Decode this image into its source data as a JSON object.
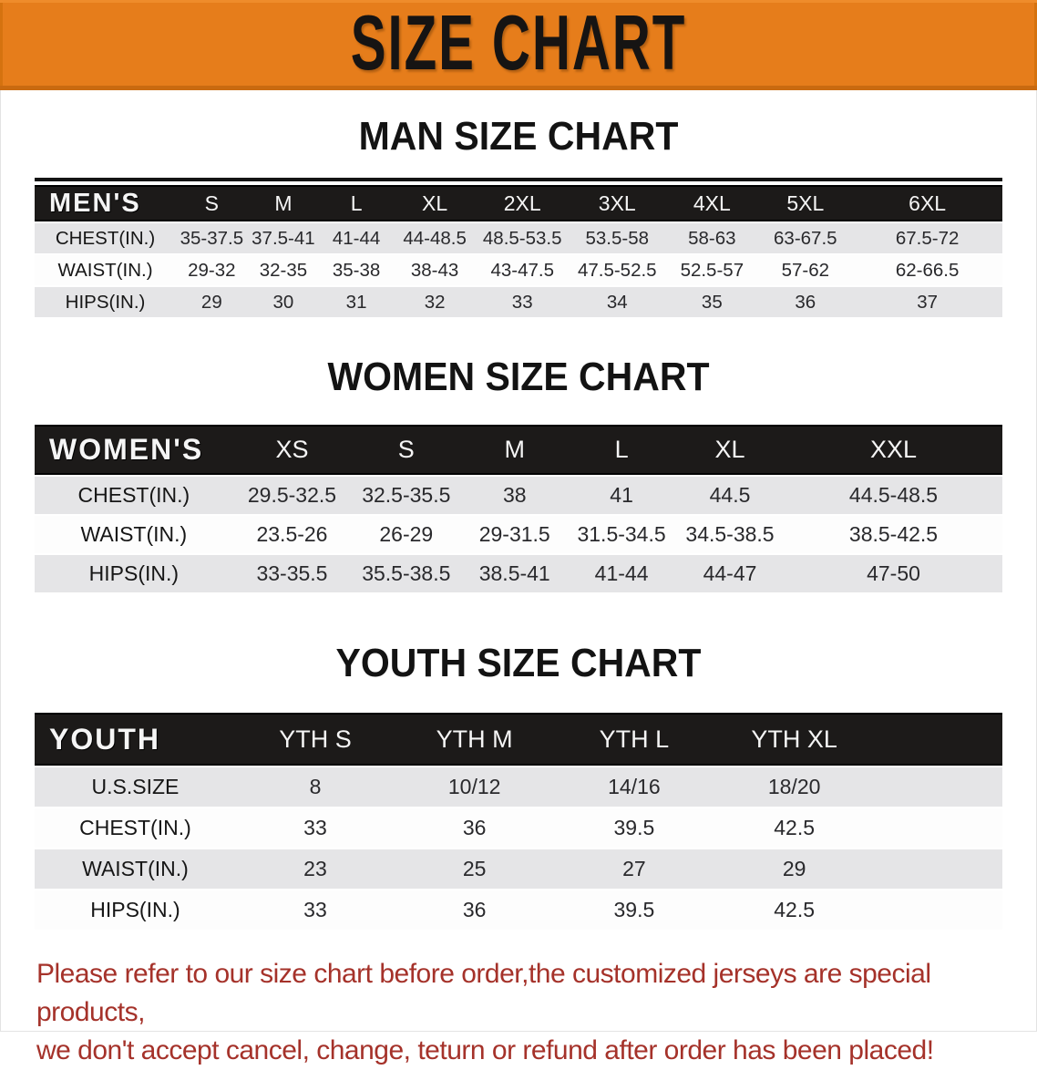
{
  "banner": {
    "title": "SIZE CHART",
    "bg_color": "#e67d1b",
    "text_color": "#161413"
  },
  "sections": [
    {
      "heading": "MAN SIZE CHART",
      "table": {
        "label": "MEN'S",
        "columns": [
          "S",
          "M",
          "L",
          "XL",
          "2XL",
          "3XL",
          "4XL",
          "5XL",
          "6XL"
        ],
        "rows": [
          {
            "label": "CHEST(IN.)",
            "values": [
              "35-37.5",
              "37.5-41",
              "41-44",
              "44-48.5",
              "48.5-53.5",
              "53.5-58",
              "58-63",
              "63-67.5",
              "67.5-72"
            ]
          },
          {
            "label": "WAIST(IN.)",
            "values": [
              "29-32",
              "32-35",
              "35-38",
              "38-43",
              "43-47.5",
              "47.5-52.5",
              "52.5-57",
              "57-62",
              "62-66.5"
            ]
          },
          {
            "label": "HIPS(IN.)",
            "values": [
              "29",
              "30",
              "31",
              "32",
              "33",
              "34",
              "35",
              "36",
              "37"
            ]
          }
        ]
      }
    },
    {
      "heading": "WOMEN SIZE CHART",
      "table": {
        "label": "WOMEN'S",
        "columns": [
          "XS",
          "S",
          "M",
          "L",
          "XL",
          "XXL"
        ],
        "rows": [
          {
            "label": "CHEST(IN.)",
            "values": [
              "29.5-32.5",
              "32.5-35.5",
              "38",
              "41",
              "44.5",
              "44.5-48.5"
            ]
          },
          {
            "label": "WAIST(IN.)",
            "values": [
              "23.5-26",
              "26-29",
              "29-31.5",
              "31.5-34.5",
              "34.5-38.5",
              "38.5-42.5"
            ]
          },
          {
            "label": "HIPS(IN.)",
            "values": [
              "33-35.5",
              "35.5-38.5",
              "38.5-41",
              "41-44",
              "44-47",
              "47-50"
            ]
          }
        ]
      }
    },
    {
      "heading": "YOUTH SIZE CHART",
      "table": {
        "label": "YOUTH",
        "columns": [
          "YTH S",
          "YTH M",
          "YTH L",
          "YTH XL"
        ],
        "rows": [
          {
            "label": "U.S.SIZE",
            "values": [
              "8",
              "10/12",
              "14/16",
              "18/20"
            ]
          },
          {
            "label": "CHEST(IN.)",
            "values": [
              "33",
              "36",
              "39.5",
              "42.5"
            ]
          },
          {
            "label": "WAIST(IN.)",
            "values": [
              "23",
              "25",
              "27",
              "29"
            ]
          },
          {
            "label": "HIPS(IN.)",
            "values": [
              "33",
              "36",
              "39.5",
              "42.5"
            ]
          }
        ]
      }
    }
  ],
  "footer": {
    "lines": [
      "Please refer to our size chart before order,the customized jerseys are special products,",
      "we don't accept cancel, change, teturn or refund after order has been placed!"
    ],
    "text_color": "#a5322a"
  },
  "colors": {
    "banner_orange": "#e67d1b",
    "banner_border": "#c96a10",
    "table_header_black": "#1c1a19",
    "row_gray": "#e5e5e7",
    "row_white": "#fdfdfd"
  }
}
